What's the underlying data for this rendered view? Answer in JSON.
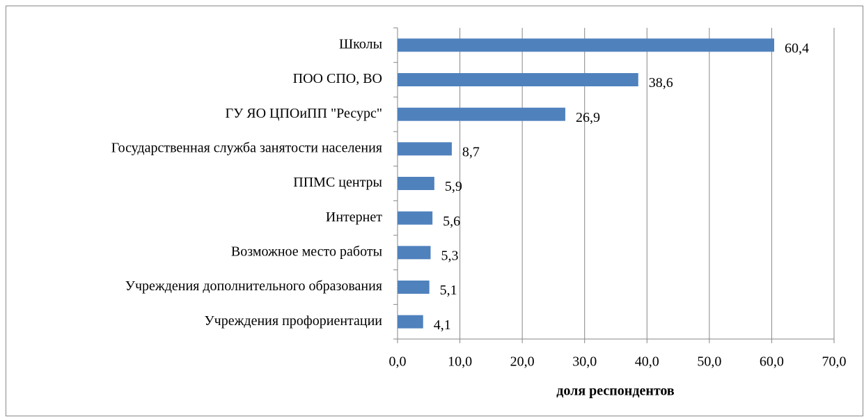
{
  "chart_data": {
    "type": "bar",
    "orientation": "horizontal",
    "categories": [
      "Школы",
      "ПОО СПО, ВО",
      "ГУ ЯО ЦПОиПП \"Ресурс\"",
      "Государственная служба занятости населения",
      "ППМС центры",
      "Интернет",
      "Возможное место работы",
      "Учреждения дополнительного образования",
      "Учреждения профориентации"
    ],
    "values": [
      60.4,
      38.6,
      26.9,
      8.7,
      5.9,
      5.6,
      5.3,
      5.1,
      4.1
    ],
    "value_labels": [
      "60,4",
      "38,6",
      "26,9",
      "8,7",
      "5,9",
      "5,6",
      "5,3",
      "5,1",
      "4,1"
    ],
    "color": "#4f81bd",
    "xlabel": "доля респондентов",
    "xlim": [
      0,
      70
    ],
    "xticks": [
      {
        "value": 0,
        "label": "0,0"
      },
      {
        "value": 10,
        "label": "10,0"
      },
      {
        "value": 20,
        "label": "20,0"
      },
      {
        "value": 30,
        "label": "30,0"
      },
      {
        "value": 40,
        "label": "40,0"
      },
      {
        "value": 50,
        "label": "50,0"
      },
      {
        "value": 60,
        "label": "60,0"
      },
      {
        "value": 70,
        "label": "70,0"
      }
    ],
    "grid": true
  }
}
